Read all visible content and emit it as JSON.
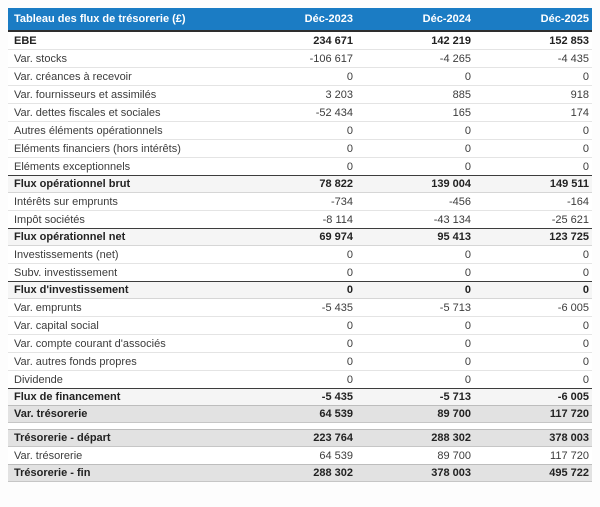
{
  "colors": {
    "header_bg": "#1b7cc4",
    "header_text": "#ffffff",
    "subtotal_row_bg": "#f5f5f5",
    "total_row_bg": "#e2e2e2",
    "dark_border": "#2e2e2e",
    "row_separator": "#e4e4e4"
  },
  "table": {
    "title": "Tableau des flux de trésorerie (£)",
    "columns": [
      "Déc-2023",
      "Déc-2024",
      "Déc-2025"
    ],
    "rows": [
      {
        "label": "EBE",
        "values": [
          "234 671",
          "142 219",
          "152 853"
        ],
        "style": "bold"
      },
      {
        "label": "Var. stocks",
        "values": [
          "-106 617",
          "-4 265",
          "-4 435"
        ],
        "style": "normal"
      },
      {
        "label": "Var. créances à recevoir",
        "values": [
          "0",
          "0",
          "0"
        ],
        "style": "normal"
      },
      {
        "label": "Var. fournisseurs et assimilés",
        "values": [
          "3 203",
          "885",
          "918"
        ],
        "style": "normal"
      },
      {
        "label": "Var. dettes fiscales et sociales",
        "values": [
          "-52 434",
          "165",
          "174"
        ],
        "style": "normal"
      },
      {
        "label": "Autres éléments opérationnels",
        "values": [
          "0",
          "0",
          "0"
        ],
        "style": "normal"
      },
      {
        "label": "Eléments financiers (hors intérêts)",
        "values": [
          "0",
          "0",
          "0"
        ],
        "style": "normal"
      },
      {
        "label": "Eléments exceptionnels",
        "values": [
          "0",
          "0",
          "0"
        ],
        "style": "normal"
      },
      {
        "label": "Flux opérationnel brut",
        "values": [
          "78 822",
          "139 004",
          "149 511"
        ],
        "style": "subtotal"
      },
      {
        "label": "Intérêts sur emprunts",
        "values": [
          "-734",
          "-456",
          "-164"
        ],
        "style": "normal"
      },
      {
        "label": "Impôt sociétés",
        "values": [
          "-8 114",
          "-43 134",
          "-25 621"
        ],
        "style": "normal"
      },
      {
        "label": "Flux opérationnel net",
        "values": [
          "69 974",
          "95 413",
          "123 725"
        ],
        "style": "subtotal"
      },
      {
        "label": "Investissements (net)",
        "values": [
          "0",
          "0",
          "0"
        ],
        "style": "normal"
      },
      {
        "label": "Subv. investissement",
        "values": [
          "0",
          "0",
          "0"
        ],
        "style": "normal"
      },
      {
        "label": "Flux d'investissement",
        "values": [
          "0",
          "0",
          "0"
        ],
        "style": "subtotal"
      },
      {
        "label": "Var. emprunts",
        "values": [
          "-5 435",
          "-5 713",
          "-6 005"
        ],
        "style": "normal"
      },
      {
        "label": "Var. capital social",
        "values": [
          "0",
          "0",
          "0"
        ],
        "style": "normal"
      },
      {
        "label": "Var. compte courant d'associés",
        "values": [
          "0",
          "0",
          "0"
        ],
        "style": "normal"
      },
      {
        "label": "Var. autres fonds propres",
        "values": [
          "0",
          "0",
          "0"
        ],
        "style": "normal"
      },
      {
        "label": "Dividende",
        "values": [
          "0",
          "0",
          "0"
        ],
        "style": "normal"
      },
      {
        "label": "Flux de financement",
        "values": [
          "-5 435",
          "-5 713",
          "-6 005"
        ],
        "style": "subtotal"
      },
      {
        "label": "Var. trésorerie",
        "values": [
          "64 539",
          "89 700",
          "117 720"
        ],
        "style": "total"
      },
      {
        "style": "spacer"
      },
      {
        "label": "Trésorerie - départ",
        "values": [
          "223 764",
          "288 302",
          "378 003"
        ],
        "style": "total"
      },
      {
        "label": "Var. trésorerie",
        "values": [
          "64 539",
          "89 700",
          "117 720"
        ],
        "style": "normal"
      },
      {
        "label": "Trésorerie - fin",
        "values": [
          "288 302",
          "378 003",
          "495 722"
        ],
        "style": "total"
      }
    ]
  }
}
